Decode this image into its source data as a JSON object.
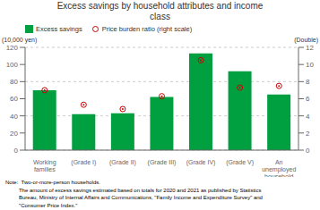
{
  "chart_data": {
    "type": "bar",
    "title": "Excess savings by household attributes and income\nclass",
    "categories": [
      "Working\nfamilies",
      "(Grade I)",
      "(Grade II)",
      "(Grade III)",
      "(Grade IV)",
      "(Grade V)",
      "An\nunemployed\nhousehold"
    ],
    "series": [
      {
        "name": "Excess savings",
        "type": "bar",
        "color": "#00a040",
        "values": [
          70,
          42,
          43,
          62,
          113,
          92,
          65
        ]
      },
      {
        "name": "Price burden ratio (right scale)",
        "type": "scatter",
        "color": "#cc0000",
        "marker": "circle",
        "axis": "y2",
        "values": [
          7.0,
          5.3,
          4.8,
          6.3,
          10.5,
          7.3,
          7.5
        ]
      }
    ],
    "ylabel": "(10,000 yen)",
    "y2label": "(Double)",
    "ylim": [
      0,
      120
    ],
    "yticks": [
      0,
      20,
      40,
      60,
      80,
      100,
      120
    ],
    "y2lim": [
      0,
      12
    ],
    "y2ticks": [
      0,
      2,
      4,
      6,
      8,
      10,
      12
    ],
    "grid": true,
    "legend": "upper left",
    "annotations": [
      "Note:  Two-or-more-person households.",
      "         The amount of excess savings estimated based on totals for 2020 and 2021 as published by Statistics",
      "         Bureau, Ministry of Internal Affairs and Communications, \"Family Income and Expenditure Survey\" and",
      "         \"Consumer Price Index.\""
    ]
  }
}
